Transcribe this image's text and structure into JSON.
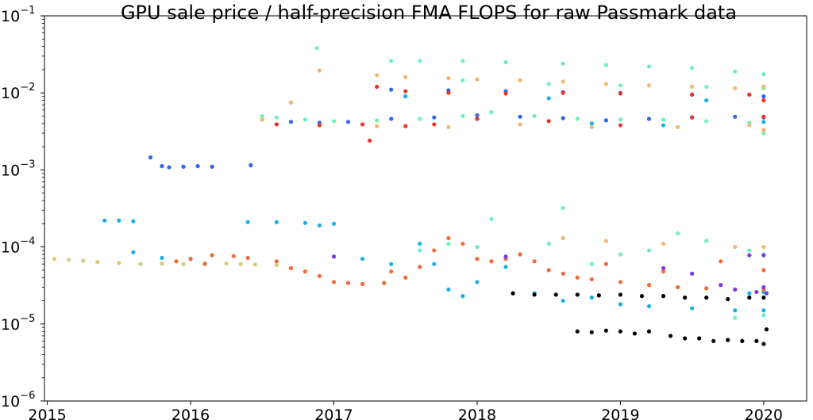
{
  "chart_data": {
    "type": "scatter",
    "title": "GPU sale price / half-precision FMA FLOPS for raw Passmark data",
    "xlabel": "",
    "ylabel": "",
    "yscale": "log",
    "ylim": [
      1e-06,
      0.1
    ],
    "xlim": [
      2014.98,
      2020.3
    ],
    "grid": false,
    "legend": "none",
    "x_ticks": [
      {
        "value": 2015,
        "label": "2015"
      },
      {
        "value": 2016,
        "label": "2016"
      },
      {
        "value": 2017,
        "label": "2017"
      },
      {
        "value": 2018,
        "label": "2018"
      },
      {
        "value": 2019,
        "label": "2019"
      },
      {
        "value": 2020,
        "label": "2020"
      }
    ],
    "y_ticks": [
      {
        "value": 1e-06,
        "base": "10",
        "exp": "−6"
      },
      {
        "value": 1e-05,
        "base": "10",
        "exp": "−5"
      },
      {
        "value": 0.0001,
        "base": "10",
        "exp": "−4"
      },
      {
        "value": 0.001,
        "base": "10",
        "exp": "−3"
      },
      {
        "value": 0.01,
        "base": "10",
        "exp": "−2"
      },
      {
        "value": 0.1,
        "base": "10",
        "exp": "−1"
      }
    ],
    "series": [
      {
        "color": "#d8cc7c",
        "points": [
          [
            2015.05,
            7e-05
          ],
          [
            2015.15,
            6.8e-05
          ],
          [
            2015.25,
            6.6e-05
          ],
          [
            2015.35,
            6.4e-05
          ],
          [
            2015.5,
            6.2e-05
          ],
          [
            2015.65,
            6e-05
          ],
          [
            2015.8,
            6.1e-05
          ],
          [
            2015.95,
            6e-05
          ],
          [
            2016.1,
            6.2e-05
          ],
          [
            2016.25,
            6.1e-05
          ],
          [
            2016.35,
            6e-05
          ],
          [
            2016.45,
            5.9e-05
          ],
          [
            2016.6,
            5.8e-05
          ]
        ]
      },
      {
        "color": "#3366ee",
        "points": [
          [
            2015.72,
            0.00145
          ],
          [
            2015.8,
            0.00112
          ],
          [
            2015.85,
            0.00108
          ],
          [
            2015.95,
            0.0011
          ],
          [
            2016.05,
            0.00112
          ],
          [
            2016.15,
            0.0011
          ],
          [
            2016.42,
            0.00115
          ],
          [
            2016.5,
            0.0045
          ],
          [
            2016.7,
            0.0042
          ],
          [
            2016.9,
            0.0041
          ],
          [
            2017.1,
            0.0042
          ],
          [
            2017.4,
            0.0046
          ],
          [
            2017.7,
            0.0048
          ],
          [
            2018.0,
            0.0051
          ],
          [
            2018.3,
            0.0049
          ],
          [
            2018.6,
            0.0047
          ],
          [
            2018.9,
            0.0044
          ],
          [
            2019.2,
            0.0046
          ],
          [
            2019.5,
            0.0048
          ],
          [
            2019.8,
            0.0049
          ],
          [
            2020.0,
            0.0048
          ],
          [
            2017.4,
            0.011
          ],
          [
            2017.8,
            0.0108
          ],
          [
            2018.2,
            0.0105
          ],
          [
            2018.6,
            0.0102
          ],
          [
            2019.0,
            0.01
          ],
          [
            2019.5,
            0.0095
          ],
          [
            2020.0,
            0.009
          ]
        ]
      },
      {
        "color": "#1aaee8",
        "points": [
          [
            2015.4,
            0.00022
          ],
          [
            2015.5,
            0.00022
          ],
          [
            2015.6,
            0.000215
          ],
          [
            2015.6,
            8.5e-05
          ],
          [
            2015.8,
            7.2e-05
          ],
          [
            2016.0,
            7e-05
          ],
          [
            2016.4,
            0.00021
          ],
          [
            2016.6,
            0.00021
          ],
          [
            2016.8,
            0.000205
          ],
          [
            2016.9,
            0.00019
          ],
          [
            2017.0,
            0.0002
          ],
          [
            2017.2,
            7e-05
          ],
          [
            2017.4,
            6e-05
          ],
          [
            2017.6,
            0.00011
          ],
          [
            2017.7,
            6e-05
          ],
          [
            2017.8,
            2.8e-05
          ],
          [
            2017.9,
            2.3e-05
          ],
          [
            2018.0,
            3.5e-05
          ],
          [
            2018.2,
            5.5e-05
          ],
          [
            2018.4,
            2.5e-05
          ],
          [
            2018.6,
            2e-05
          ],
          [
            2018.8,
            2.2e-05
          ],
          [
            2019.0,
            1.8e-05
          ],
          [
            2019.2,
            1.7e-05
          ],
          [
            2019.5,
            1.6e-05
          ],
          [
            2019.8,
            1.5e-05
          ],
          [
            2020.0,
            1.5e-05
          ],
          [
            2019.9,
            2.5e-05
          ],
          [
            2020.0,
            2.6e-05
          ],
          [
            2018.8,
            0.004
          ],
          [
            2019.3,
            0.0038
          ],
          [
            2020.0,
            0.0042
          ],
          [
            2017.5,
            0.009
          ],
          [
            2018.5,
            0.0085
          ],
          [
            2019.6,
            0.008
          ]
        ]
      },
      {
        "color": "#6ef2b8",
        "points": [
          [
            2016.5,
            0.005
          ],
          [
            2016.6,
            0.0048
          ],
          [
            2016.8,
            0.0045
          ],
          [
            2017.0,
            0.0043
          ],
          [
            2017.3,
            0.0044
          ],
          [
            2017.6,
            0.0046
          ],
          [
            2017.9,
            0.005
          ],
          [
            2018.1,
            0.0056
          ],
          [
            2018.4,
            0.005
          ],
          [
            2018.7,
            0.0046
          ],
          [
            2019.0,
            0.0045
          ],
          [
            2019.3,
            0.0045
          ],
          [
            2019.6,
            0.0043
          ],
          [
            2019.9,
            0.0041
          ],
          [
            2020.0,
            0.003
          ],
          [
            2016.88,
            0.038
          ],
          [
            2017.4,
            0.026
          ],
          [
            2017.6,
            0.026
          ],
          [
            2017.9,
            0.026
          ],
          [
            2018.2,
            0.025
          ],
          [
            2018.6,
            0.024
          ],
          [
            2018.9,
            0.023
          ],
          [
            2019.2,
            0.022
          ],
          [
            2019.5,
            0.021
          ],
          [
            2019.8,
            0.019
          ],
          [
            2020.0,
            0.0175
          ],
          [
            2017.9,
            0.0145
          ],
          [
            2018.5,
            0.013
          ],
          [
            2019.0,
            0.0125
          ],
          [
            2019.6,
            0.012
          ],
          [
            2020.0,
            0.0115
          ],
          [
            2017.6,
            9e-05
          ],
          [
            2017.8,
            0.00011
          ],
          [
            2018.0,
            0.0001
          ],
          [
            2018.1,
            0.00023
          ],
          [
            2018.3,
            8e-05
          ],
          [
            2018.5,
            0.00011
          ],
          [
            2018.6,
            0.00032
          ],
          [
            2018.8,
            6e-05
          ],
          [
            2019.0,
            8e-05
          ],
          [
            2019.2,
            9e-05
          ],
          [
            2019.4,
            0.00015
          ],
          [
            2019.6,
            0.00012
          ],
          [
            2019.8,
            1.2e-05
          ],
          [
            2020.0,
            1.3e-05
          ],
          [
            2019.9,
            9e-05
          ],
          [
            2020.0,
            8e-05
          ]
        ]
      },
      {
        "color": "#f0b870",
        "points": [
          [
            2016.9,
            0.0195
          ],
          [
            2017.3,
            0.017
          ],
          [
            2017.5,
            0.016
          ],
          [
            2017.8,
            0.0155
          ],
          [
            2018.0,
            0.015
          ],
          [
            2018.3,
            0.0145
          ],
          [
            2018.6,
            0.014
          ],
          [
            2018.9,
            0.013
          ],
          [
            2019.2,
            0.0125
          ],
          [
            2019.5,
            0.012
          ],
          [
            2019.8,
            0.0115
          ],
          [
            2020.0,
            0.012
          ],
          [
            2016.5,
            0.0045
          ],
          [
            2016.7,
            0.0075
          ],
          [
            2017.3,
            0.0037
          ],
          [
            2017.8,
            0.0036
          ],
          [
            2018.3,
            0.0039
          ],
          [
            2018.8,
            0.0036
          ],
          [
            2019.4,
            0.0036
          ],
          [
            2019.9,
            0.0038
          ],
          [
            2020.0,
            0.0033
          ],
          [
            2018.6,
            0.00013
          ],
          [
            2018.9,
            0.00012
          ],
          [
            2019.3,
            0.00011
          ],
          [
            2019.8,
            0.0001
          ],
          [
            2020.0,
            0.0001
          ]
        ]
      },
      {
        "color": "#e8342a",
        "points": [
          [
            2016.6,
            0.0039
          ],
          [
            2016.9,
            0.0038
          ],
          [
            2017.2,
            0.0039
          ],
          [
            2017.25,
            0.0024
          ],
          [
            2017.5,
            0.0037
          ],
          [
            2017.7,
            0.0039
          ],
          [
            2018.0,
            0.0046
          ],
          [
            2018.5,
            0.0043
          ],
          [
            2019.0,
            0.0038
          ],
          [
            2019.5,
            0.0048
          ],
          [
            2020.0,
            0.0049
          ],
          [
            2017.3,
            0.012
          ],
          [
            2017.5,
            0.0105
          ],
          [
            2017.8,
            0.01
          ],
          [
            2018.2,
            0.0098
          ],
          [
            2018.6,
            0.01
          ],
          [
            2019.0,
            0.0098
          ],
          [
            2019.5,
            0.0095
          ],
          [
            2019.9,
            0.0095
          ],
          [
            2020.0,
            0.008
          ]
        ]
      },
      {
        "color": "#f26a3a",
        "points": [
          [
            2015.9,
            6.5e-05
          ],
          [
            2016.0,
            7e-05
          ],
          [
            2016.15,
            7.8e-05
          ],
          [
            2016.3,
            7.6e-05
          ],
          [
            2016.4,
            7.2e-05
          ],
          [
            2016.6,
            6.5e-05
          ],
          [
            2016.7,
            5.3e-05
          ],
          [
            2016.8,
            4.8e-05
          ],
          [
            2016.9,
            4.2e-05
          ],
          [
            2017.0,
            3.5e-05
          ],
          [
            2017.1,
            3.4e-05
          ],
          [
            2017.2,
            3.3e-05
          ],
          [
            2017.35,
            3.4e-05
          ],
          [
            2017.5,
            4e-05
          ],
          [
            2017.6,
            5.5e-05
          ],
          [
            2017.7,
            9e-05
          ],
          [
            2017.8,
            0.00013
          ],
          [
            2017.9,
            0.00011
          ],
          [
            2018.0,
            7e-05
          ],
          [
            2018.1,
            6.5e-05
          ],
          [
            2018.2,
            7e-05
          ],
          [
            2018.3,
            8e-05
          ],
          [
            2018.4,
            6.5e-05
          ],
          [
            2018.5,
            5e-05
          ],
          [
            2018.6,
            4.5e-05
          ],
          [
            2018.7,
            4e-05
          ],
          [
            2018.8,
            3.8e-05
          ],
          [
            2019.0,
            3.5e-05
          ],
          [
            2019.2,
            3.2e-05
          ],
          [
            2019.4,
            3e-05
          ],
          [
            2019.6,
            2.9e-05
          ],
          [
            2019.8,
            2.8e-05
          ],
          [
            2020.0,
            2.8e-05
          ],
          [
            2016.1,
            6e-05
          ],
          [
            2017.4,
            4.8e-05
          ],
          [
            2018.9,
            6e-05
          ],
          [
            2019.3,
            4.8e-05
          ],
          [
            2019.7,
            6.5e-05
          ],
          [
            2020.0,
            5e-05
          ]
        ]
      },
      {
        "color": "#7a3ae8",
        "points": [
          [
            2017.0,
            7.5e-05
          ],
          [
            2018.2,
            7.5e-05
          ],
          [
            2019.3,
            5.3e-05
          ],
          [
            2019.5,
            4.5e-05
          ],
          [
            2019.7,
            3.2e-05
          ],
          [
            2019.8,
            2.8e-05
          ],
          [
            2019.95,
            2.6e-05
          ],
          [
            2020.0,
            3e-05
          ],
          [
            2020.02,
            2.5e-05
          ],
          [
            2019.9,
            7.8e-05
          ],
          [
            2020.0,
            7.8e-05
          ]
        ]
      },
      {
        "color": "#000000",
        "points": [
          [
            2018.25,
            2.5e-05
          ],
          [
            2018.4,
            2.4e-05
          ],
          [
            2018.55,
            2.4e-05
          ],
          [
            2018.7,
            2.4e-05
          ],
          [
            2018.85,
            2.35e-05
          ],
          [
            2019.0,
            2.4e-05
          ],
          [
            2019.15,
            2.3e-05
          ],
          [
            2019.3,
            2.3e-05
          ],
          [
            2019.45,
            2.2e-05
          ],
          [
            2019.6,
            2.2e-05
          ],
          [
            2019.75,
            2.1e-05
          ],
          [
            2019.9,
            2.2e-05
          ],
          [
            2020.0,
            2.2e-05
          ],
          [
            2018.7,
            8e-06
          ],
          [
            2018.8,
            7.8e-06
          ],
          [
            2018.9,
            8.2e-06
          ],
          [
            2019.0,
            8e-06
          ],
          [
            2019.1,
            7.5e-06
          ],
          [
            2019.2,
            8e-06
          ],
          [
            2019.35,
            7e-06
          ],
          [
            2019.45,
            6.5e-06
          ],
          [
            2019.55,
            6.5e-06
          ],
          [
            2019.65,
            6e-06
          ],
          [
            2019.75,
            6.2e-06
          ],
          [
            2019.85,
            6e-06
          ],
          [
            2019.95,
            6e-06
          ],
          [
            2020.0,
            5.5e-06
          ],
          [
            2020.02,
            8.5e-06
          ]
        ]
      }
    ]
  }
}
